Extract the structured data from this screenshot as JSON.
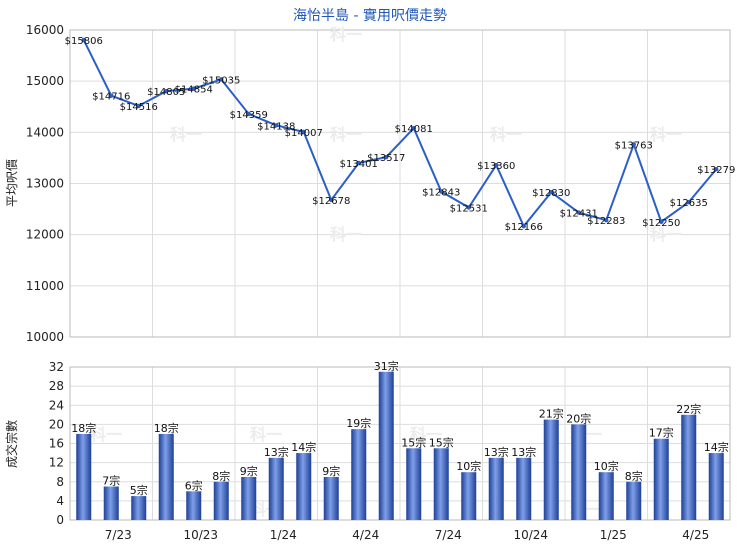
{
  "chart_data": [
    {
      "type": "line",
      "title": "海怡半島 - 實用呎價走勢",
      "ylabel": "平均呎價",
      "xlabel": "",
      "ylim": [
        10000,
        16000
      ],
      "yticks": [
        10000,
        11000,
        12000,
        13000,
        14000,
        15000,
        16000
      ],
      "grid": true,
      "color": "#2a5fc7",
      "series": [
        {
          "values": [
            15806,
            14716,
            14516,
            14805,
            14854,
            15035,
            14359,
            14138,
            14007,
            12678,
            13401,
            13517,
            14081,
            12843,
            12531,
            13360,
            12166,
            12830,
            12431,
            12283,
            13763,
            12250,
            12635,
            13279
          ],
          "labels": [
            "$15806",
            "$14716",
            "$14516",
            "$14805",
            "$14854",
            "$15035",
            "$14359",
            "$14138",
            "$14007",
            "$12678",
            "$13401",
            "$13517",
            "$14081",
            "$12843",
            "$12531",
            "$13360",
            "$12166",
            "$12830",
            "$12431",
            "$12283",
            "$13763",
            "$12250",
            "$12635",
            "$13279"
          ]
        }
      ]
    },
    {
      "type": "bar",
      "ylabel": "成交宗數",
      "xlabel": "",
      "ylim": [
        0,
        32
      ],
      "yticks": [
        0,
        4,
        8,
        12,
        16,
        20,
        24,
        28,
        32
      ],
      "grid": true,
      "categories_ticks": [
        "7/23",
        "10/23",
        "1/24",
        "4/24",
        "7/24",
        "10/24",
        "1/25",
        "4/25"
      ],
      "series": [
        {
          "values": [
            18,
            7,
            5,
            18,
            6,
            8,
            9,
            13,
            14,
            9,
            19,
            31,
            15,
            15,
            10,
            13,
            13,
            21,
            20,
            10,
            8,
            17,
            22,
            14
          ],
          "labels": [
            "18宗",
            "7宗",
            "5宗",
            "18宗",
            "6宗",
            "8宗",
            "9宗",
            "13宗",
            "14宗",
            "9宗",
            "19宗",
            "31宗",
            "15宗",
            "15宗",
            "10宗",
            "13宗",
            "13宗",
            "21宗",
            "20宗",
            "10宗",
            "8宗",
            "17宗",
            "22宗",
            "14宗"
          ]
        }
      ]
    }
  ],
  "watermark": "科一",
  "colors": {
    "line": "#2a5fc7",
    "bar_dark": "#1d3f96",
    "bar_light": "#7f9fe8",
    "grid": "#dddddd"
  }
}
